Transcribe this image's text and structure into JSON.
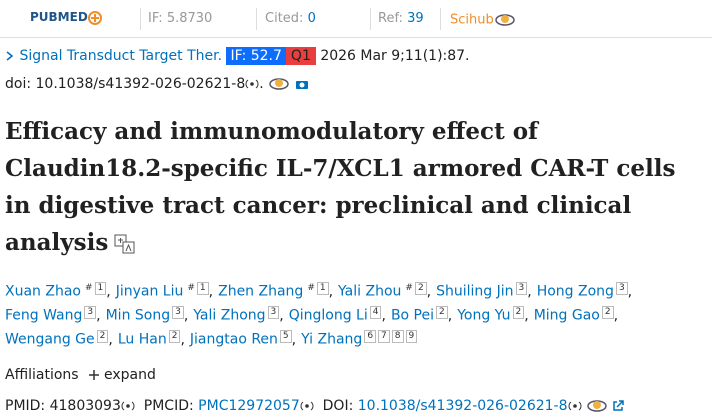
{
  "toolbar": {
    "logo": "PUBMED",
    "if_label": "IF:",
    "if_value": "5.8730",
    "cited_label": "Cited:",
    "cited_value": "0",
    "ref_label": "Ref:",
    "ref_value": "39",
    "scihub": "Scihub"
  },
  "citation": {
    "journal": "Signal Transduct Target Ther.",
    "if_badge": "IF: 52.7",
    "quartile": "Q1",
    "date": "2026 Mar 9;11(1):87.",
    "doi": "doi: 10.1038/s41392-026-02621-8",
    "doi_end": "."
  },
  "title": [
    "Efficacy and immunomodulatory effect of",
    "Claudin18.2-specific IL-7/XCL1 armored CAR-T cells",
    "in digestive tract cancer: preclinical and clinical",
    "analysis"
  ],
  "authors": {
    "separator": ",",
    "lines": [
      [
        {
          "name": "Xuan Zhao",
          "sups": [
            "#",
            "1"
          ]
        },
        {
          "name": "Jinyan Liu",
          "sups": [
            "#",
            "1"
          ]
        },
        {
          "name": "Zhen Zhang",
          "sups": [
            "#",
            "1"
          ]
        },
        {
          "name": "Yali Zhou",
          "sups": [
            "#",
            "2"
          ]
        },
        {
          "name": "Shuiling Jin",
          "sups": [
            "3"
          ]
        },
        {
          "name": "Hong Zong",
          "sups": [
            "3"
          ]
        }
      ],
      [
        {
          "name": "Feng Wang",
          "sups": [
            "3"
          ]
        },
        {
          "name": "Min Song",
          "sups": [
            "3"
          ]
        },
        {
          "name": "Yali Zhong",
          "sups": [
            "3"
          ]
        },
        {
          "name": "Qinglong Li",
          "sups": [
            "4"
          ]
        },
        {
          "name": "Bo Pei",
          "sups": [
            "2"
          ]
        },
        {
          "name": "Yong Yu",
          "sups": [
            "2"
          ]
        },
        {
          "name": "Ming Gao",
          "sups": [
            "2"
          ]
        }
      ],
      [
        {
          "name": "Wengang Ge",
          "sups": [
            "2"
          ]
        },
        {
          "name": "Lu Han",
          "sups": [
            "2"
          ]
        },
        {
          "name": "Jiangtao Ren",
          "sups": [
            "5"
          ]
        },
        {
          "name": "Yi Zhang",
          "sups": [
            "6",
            "7",
            "8",
            "9"
          ]
        }
      ]
    ]
  },
  "affiliations": {
    "label": "Affiliations",
    "expand": "expand"
  },
  "ids": {
    "pmid_label": "PMID:",
    "pmid": "41803093",
    "pmcid_label": "PMCID:",
    "pmcid": "PMC12972057",
    "doi_label": "DOI:",
    "doi": "10.1038/s41392-026-02621-8"
  }
}
